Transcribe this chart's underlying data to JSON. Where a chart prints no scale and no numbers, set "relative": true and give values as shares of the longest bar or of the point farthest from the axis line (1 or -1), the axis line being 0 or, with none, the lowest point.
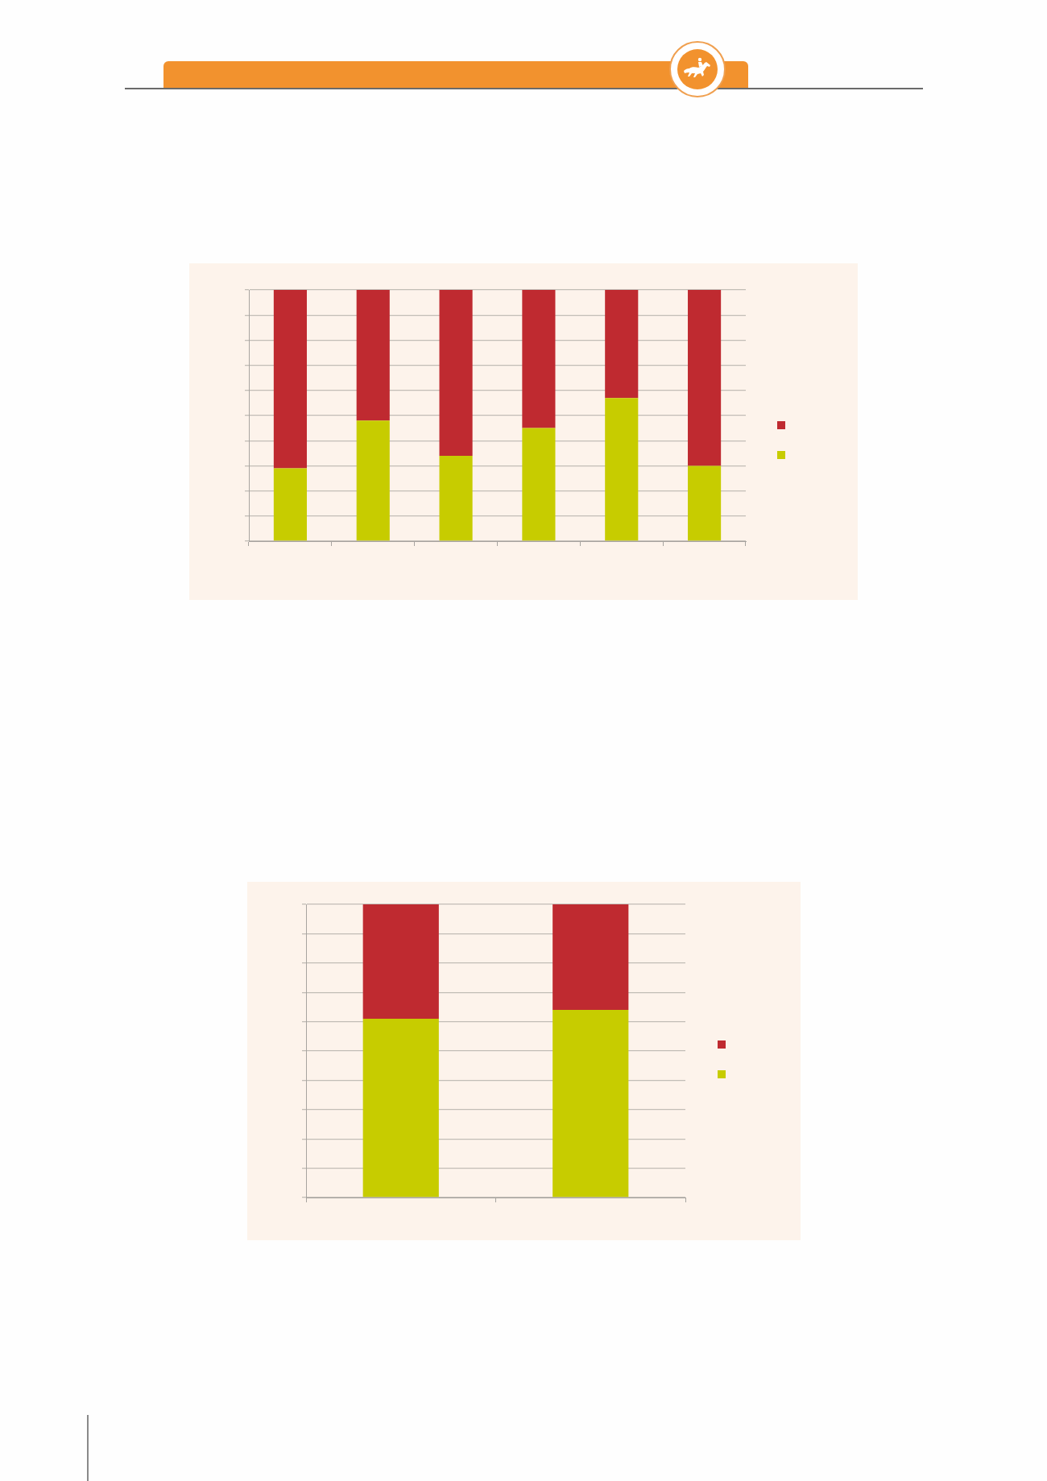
{
  "chart_data": [
    {
      "type": "bar",
      "stacked": true,
      "relative": true,
      "categories": [
        null,
        null,
        null,
        null,
        null,
        null
      ],
      "series": [
        {
          "color": "#c7cc00",
          "values": [
            0.29,
            0.48,
            0.34,
            0.45,
            0.57,
            0.3
          ]
        },
        {
          "color": "#bf2a30",
          "values": [
            0.71,
            0.52,
            0.66,
            0.55,
            0.43,
            0.7
          ]
        }
      ],
      "grid": "y"
    },
    {
      "type": "bar",
      "stacked": true,
      "relative": true,
      "categories": [
        null,
        null
      ],
      "series": [
        {
          "color": "#c7cc00",
          "values": [
            0.61,
            0.64
          ]
        },
        {
          "color": "#bf2a30",
          "values": [
            0.39,
            0.36
          ]
        }
      ],
      "grid": "y"
    }
  ]
}
